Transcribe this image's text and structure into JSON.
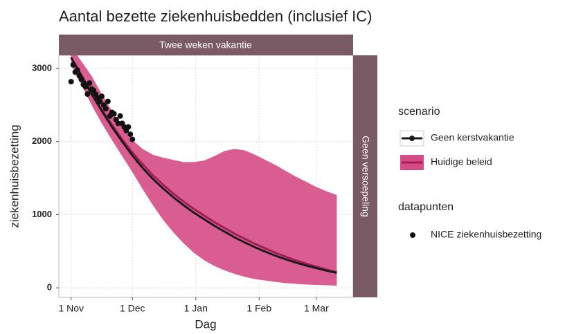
{
  "chart_data": {
    "type": "line",
    "title": "Aantal bezette ziekenhuisbedden (inclusief IC)",
    "x_label": "Dag",
    "y_label": "ziekenhuisbezetting",
    "strip_top": "Twee weken vakantie",
    "strip_right": "Geen versoepeling",
    "legend_title": "scenario",
    "points_legend_title": "datapunten",
    "x": [
      0,
      5,
      10,
      15,
      20,
      25,
      30,
      35,
      40,
      45,
      50,
      55,
      60,
      65,
      70,
      75,
      80,
      85,
      90,
      95,
      100,
      105,
      110,
      115,
      120,
      125,
      130
    ],
    "series": [
      {
        "name": "Geen kerstvakantie",
        "color": "#1a1a1a",
        "values": [
          3150,
          2900,
          2650,
          2420,
          2200,
          2000,
          1810,
          1640,
          1490,
          1360,
          1240,
          1130,
          1030,
          940,
          850,
          770,
          690,
          620,
          555,
          495,
          440,
          390,
          345,
          305,
          270,
          235,
          205
        ]
      },
      {
        "name": "Huidige beleid",
        "color": "#a21c55",
        "band_color": "#d64b86",
        "values": [
          3150,
          2910,
          2670,
          2440,
          2230,
          2030,
          1850,
          1690,
          1540,
          1410,
          1290,
          1180,
          1080,
          990,
          900,
          820,
          740,
          670,
          600,
          540,
          480,
          425,
          375,
          330,
          290,
          250,
          215
        ],
        "upper": [
          3300,
          3100,
          2900,
          2650,
          2420,
          2200,
          2020,
          1900,
          1820,
          1780,
          1750,
          1720,
          1720,
          1740,
          1800,
          1870,
          1900,
          1880,
          1820,
          1750,
          1680,
          1600,
          1520,
          1450,
          1380,
          1320,
          1270
        ],
        "lower": [
          3050,
          2780,
          2500,
          2250,
          2020,
          1800,
          1580,
          1350,
          1130,
          930,
          760,
          610,
          480,
          380,
          300,
          240,
          190,
          150,
          120,
          100,
          80,
          65,
          55,
          45,
          40,
          35,
          30
        ]
      }
    ],
    "points": {
      "name": "NICE ziekenhuisbezetting",
      "color": "#111111",
      "x": [
        0,
        1,
        2,
        3,
        4,
        5,
        6,
        7,
        8,
        9,
        10,
        11,
        12,
        13,
        14,
        15,
        16,
        17,
        18,
        19,
        20,
        21,
        22,
        23,
        24,
        25,
        26,
        27,
        28,
        29,
        30
      ],
      "values": [
        2820,
        3050,
        2950,
        2980,
        2900,
        2850,
        2780,
        2750,
        2650,
        2800,
        2720,
        2700,
        2650,
        2600,
        2550,
        2620,
        2500,
        2450,
        2550,
        2350,
        2400,
        2380,
        2300,
        2250,
        2350,
        2250,
        2200,
        2150,
        2200,
        2100,
        2030
      ]
    },
    "xlim": [
      -6,
      138
    ],
    "ylim": [
      -130,
      3180
    ],
    "xticks": [
      {
        "value": 0,
        "label": "1 Nov"
      },
      {
        "value": 30,
        "label": "1 Dec"
      },
      {
        "value": 61,
        "label": "1 Jan"
      },
      {
        "value": 92,
        "label": "1 Feb"
      },
      {
        "value": 120,
        "label": "1 Mar"
      }
    ],
    "yticks": [
      0,
      1000,
      2000,
      3000
    ],
    "grid": true
  }
}
